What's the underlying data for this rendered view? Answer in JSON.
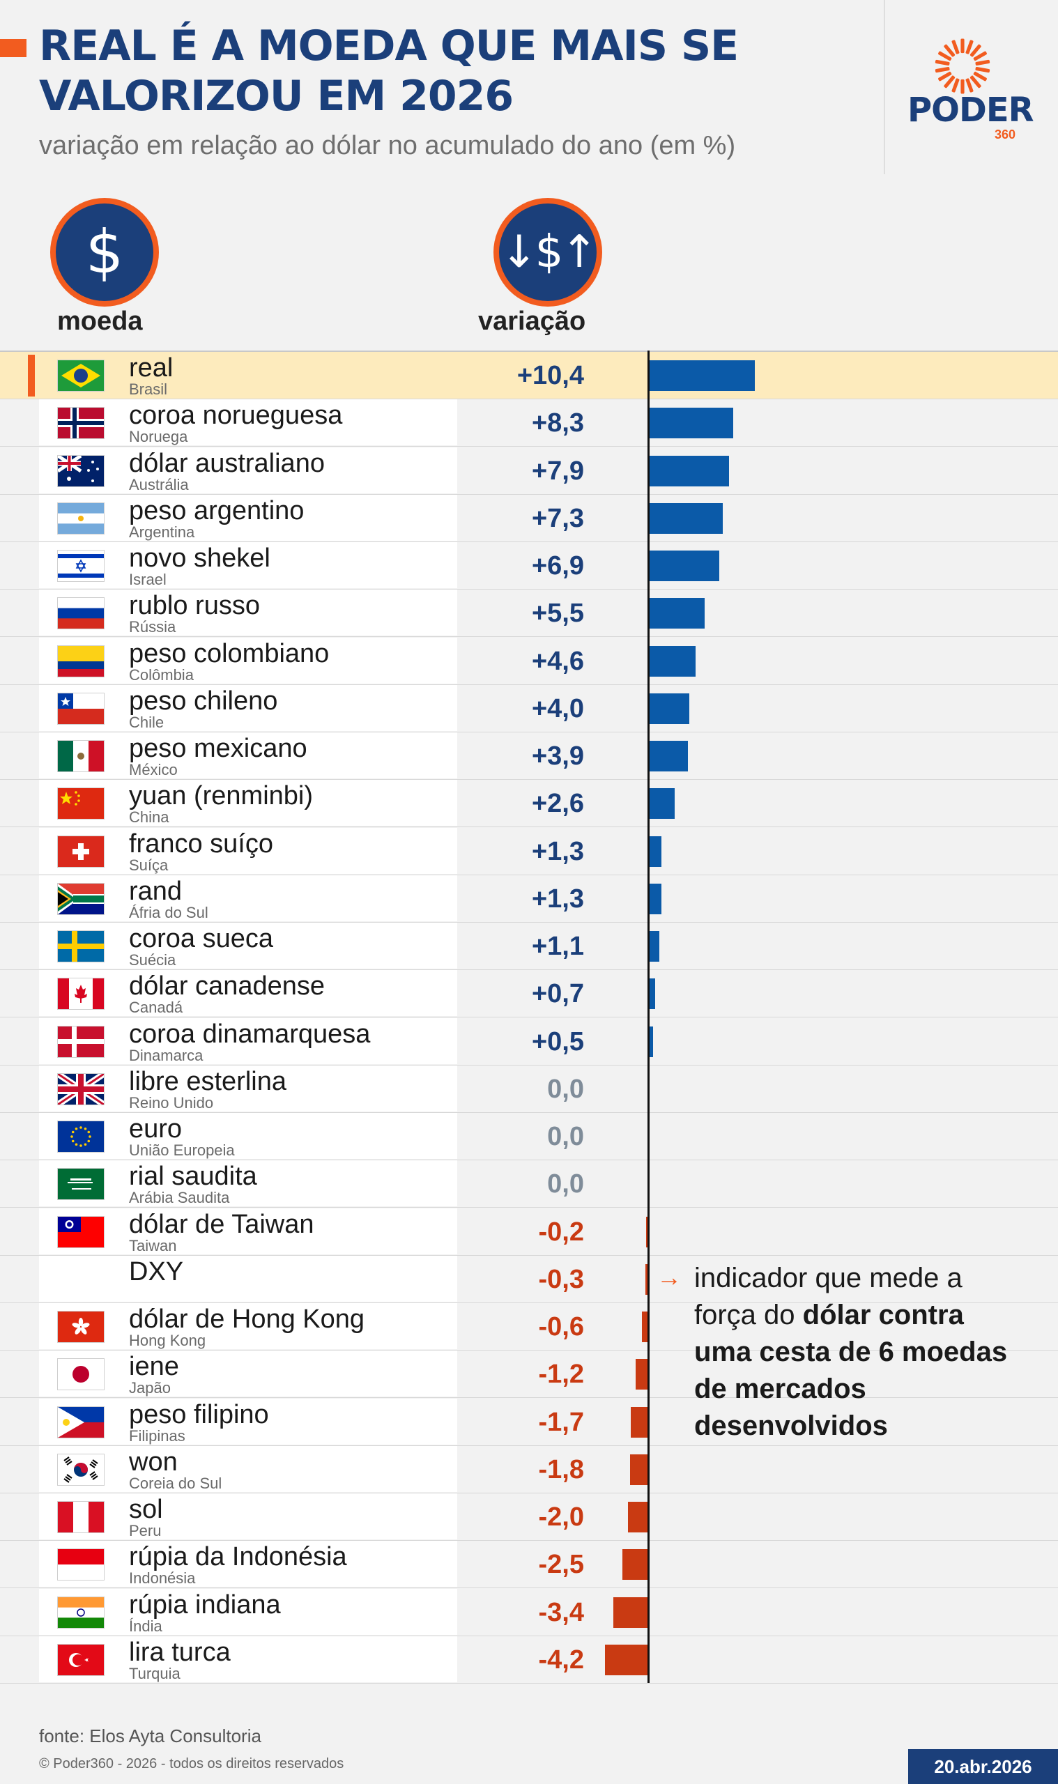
{
  "header": {
    "title": "REAL É A MOEDA QUE MAIS SE VALORIZOU EM 2026",
    "subtitle": "variação em relação ao dólar no acumulado do ano (em %)"
  },
  "logo": {
    "word": "PODER",
    "number": "360"
  },
  "columns": {
    "currency_label": "moeda",
    "currency_icon": "dollar-icon",
    "currency_icon_glyph": "$",
    "variation_label": "variação",
    "variation_icon": "dollar-exchange-icon",
    "variation_icon_glyph": "↓$↑"
  },
  "colors": {
    "positive_bar": "#0b5aa8",
    "negative_bar": "#c93a12",
    "positive_text": "#1b3f7a",
    "negative_text": "#c93a12",
    "zero_text": "#7f8c99",
    "accent": "#f25c1f",
    "highlight_row": "#fdebbd"
  },
  "chart_data": {
    "type": "bar",
    "orientation": "horizontal",
    "xlim": [
      -4.2,
      10.4
    ],
    "categories": [
      "real",
      "coroa norueguesa",
      "dólar australiano",
      "peso argentino",
      "novo shekel",
      "rublo russo",
      "peso colombiano",
      "peso chileno",
      "peso mexicano",
      "yuan (renminbi)",
      "franco suíço",
      "rand",
      "coroa sueca",
      "dólar canadense",
      "coroa dinamarquesa",
      "libre esterlina",
      "euro",
      "rial saudita",
      "dólar de Taiwan",
      "DXY",
      "dólar de Hong Kong",
      "iene",
      "peso filipino",
      "won",
      "sol",
      "rúpia da Indonésia",
      "rúpia indiana",
      "lira turca"
    ],
    "countries": [
      "Brasil",
      "Noruega",
      "Austrália",
      "Argentina",
      "Israel",
      "Rússia",
      "Colômbia",
      "Chile",
      "México",
      "China",
      "Suíça",
      "Áfria do Sul",
      "Suécia",
      "Canadá",
      "Dinamarca",
      "Reino Unido",
      "União Europeia",
      "Arábia Saudita",
      "Taiwan",
      "",
      "Hong Kong",
      "Japão",
      "Filipinas",
      "Coreia do Sul",
      "Peru",
      "Indonésia",
      "Índia",
      "Turquia"
    ],
    "values": [
      10.4,
      8.3,
      7.9,
      7.3,
      6.9,
      5.5,
      4.6,
      4.0,
      3.9,
      2.6,
      1.3,
      1.3,
      1.1,
      0.7,
      0.5,
      0.0,
      0.0,
      0.0,
      -0.2,
      -0.3,
      -0.6,
      -1.2,
      -1.7,
      -1.8,
      -2.0,
      -2.5,
      -3.4,
      -4.2
    ],
    "labels": [
      "+10,4",
      "+8,3",
      "+7,9",
      "+7,3",
      "+6,9",
      "+5,5",
      "+4,6",
      "+4,0",
      "+3,9",
      "+2,6",
      "+1,3",
      "+1,3",
      "+1,1",
      "+0,7",
      "+0,5",
      "0,0",
      "0,0",
      "0,0",
      "-0,2",
      "-0,3",
      "-0,6",
      "-1,2",
      "-1,7",
      "-1,8",
      "-2,0",
      "-2,5",
      "-3,4",
      "-4,2"
    ],
    "flags": [
      "brazil",
      "norway",
      "australia",
      "argentina",
      "israel",
      "russia",
      "colombia",
      "chile",
      "mexico",
      "china",
      "switzerland",
      "south-africa",
      "sweden",
      "canada",
      "denmark",
      "uk",
      "eu",
      "saudi-arabia",
      "taiwan",
      "",
      "hong-kong",
      "japan",
      "philippines",
      "south-korea",
      "peru",
      "indonesia",
      "india",
      "turkey"
    ],
    "highlight": "real"
  },
  "note": {
    "arrow": "→",
    "text_before": "indicador que mede a força do ",
    "text_bold": "dólar contra uma cesta de 6 moedas de mercados desenvolvidos"
  },
  "footer": {
    "source": "fonte: Elos Ayta Consultoria",
    "copyright": "© Poder360 - 2026 - todos os direitos reservados",
    "date": "20.abr.2026"
  }
}
